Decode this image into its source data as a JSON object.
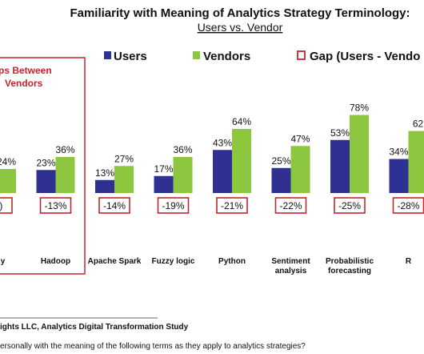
{
  "chart_data": {
    "type": "bar",
    "title": "Familiarity with Meaning of Analytics Strategy Terminology:",
    "subtitle": "Users vs. Vendor",
    "categories": [
      "logy",
      "Hadoop",
      "Apache Spark",
      "Fuzzy logic",
      "Python",
      "Sentiment analysis",
      "Probabilistic forecasting",
      "R"
    ],
    "series": [
      {
        "name": "Users",
        "color": "#2e3192",
        "values": [
          null,
          23,
          13,
          17,
          43,
          25,
          53,
          34
        ],
        "labels": [
          "",
          "23%",
          "13%",
          "17%",
          "43%",
          "25%",
          "53%",
          "34%"
        ]
      },
      {
        "name": "Vendors",
        "color": "#8dc63f",
        "values": [
          24,
          36,
          27,
          36,
          64,
          47,
          78,
          62
        ],
        "labels": [
          "24%",
          "36%",
          "27%",
          "36%",
          "64%",
          "47%",
          "78%",
          "62"
        ]
      }
    ],
    "gap": {
      "name": "Gap (Users - Vendo",
      "color": "#c1272d",
      "labels": [
        "%)",
        "-13%",
        "-14%",
        "-19%",
        "-21%",
        "-22%",
        "-25%",
        "-28%"
      ]
    },
    "highlight_box_text": [
      "ps Between",
      "Vendors"
    ],
    "ylim": [
      0,
      100
    ],
    "legend_placement": "top"
  },
  "footer": {
    "source": "ights LLC, Analytics Digital Transformation Study",
    "question": "ersonally with the meaning of the following terms as they apply to analytics strategies?"
  }
}
